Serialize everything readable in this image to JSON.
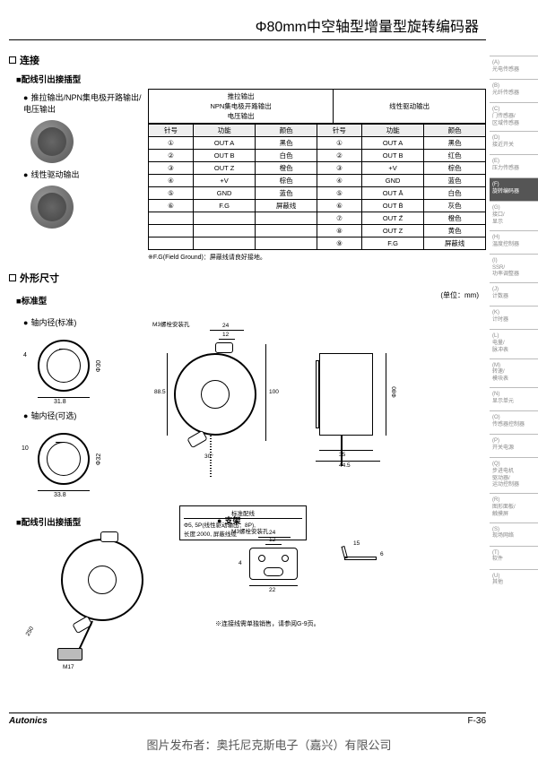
{
  "title": "Φ80mm中空轴型增量型旋转编码器",
  "section1": {
    "heading": "连接",
    "sub1": "■配线引出接插型",
    "bullet1": "推拉输出/NPN集电极开路输出/电压输出",
    "bullet2": "线性驱动输出"
  },
  "pin_table": {
    "header_left": "推拉输出\nNPN集电极开路输出\n电压输出",
    "header_right": "线性驱动输出",
    "cols": [
      "针号",
      "功能",
      "颜色",
      "针号",
      "功能",
      "颜色"
    ],
    "rows": [
      [
        "①",
        "OUT A",
        "黑色",
        "①",
        "OUT A",
        "黑色"
      ],
      [
        "②",
        "OUT B",
        "白色",
        "②",
        "OUT B",
        "红色"
      ],
      [
        "③",
        "OUT Z",
        "橙色",
        "③",
        "+V",
        "棕色"
      ],
      [
        "④",
        "+V",
        "棕色",
        "④",
        "GND",
        "蓝色"
      ],
      [
        "⑤",
        "GND",
        "蓝色",
        "⑤",
        "OUT Ā",
        "白色"
      ],
      [
        "⑥",
        "F.G",
        "屏蔽线",
        "⑥",
        "OUT B̄",
        "灰色"
      ],
      [
        "",
        "",
        "",
        "⑦",
        "OUT Z̄",
        "橙色"
      ],
      [
        "",
        "",
        "",
        "⑧",
        "OUT Z",
        "黄色"
      ],
      [
        "",
        "",
        "",
        "⑨",
        "F.G",
        "屏蔽线"
      ]
    ],
    "note": "※F.G(Field Ground)：屏蔽线请良好接地。"
  },
  "section2": {
    "heading": "外形尺寸",
    "unit": "(单位：mm)",
    "sub_standard": "■标准型",
    "inner_std": "轴内径(标准)",
    "inner_opt": "轴内径(可选)",
    "sub_plug": "■配线引出接插型",
    "bracket": "支架",
    "screw_label": "M3螺栓安装孔",
    "cable_title": "标准配线",
    "cable_text": "Φ5, 5P(线性驱动输出：8P),\n长度:2000, 屏蔽线缆",
    "bracket_note": "※连接线需单独销售，请参阅G-9页。"
  },
  "dims": {
    "d1_w": "31.8",
    "d1_gap": "4",
    "d1_dia": "Φ30",
    "d2_w": "33.8",
    "d2_gap": "10",
    "d2_dia": "Φ32",
    "main_top": "24",
    "main_top2": "12",
    "main_h": "88.5",
    "main_h2": "100",
    "main_dia": "Φ80",
    "angle": "30°",
    "side_w": "35",
    "side_w2": "44.5",
    "plug_cable": "250",
    "plug_m": "M17",
    "br_top": "24",
    "br_top2": "12",
    "br_h": "4",
    "br_side": "22",
    "br_ang": "15",
    "br_h2": "6"
  },
  "sidebar": [
    {
      "code": "(A)",
      "label": "光电传感器"
    },
    {
      "code": "(B)",
      "label": "光纤传感器"
    },
    {
      "code": "(C)",
      "label": "门传感器/\n区域传感器"
    },
    {
      "code": "(D)",
      "label": "接近开关"
    },
    {
      "code": "(E)",
      "label": "压力传感器"
    },
    {
      "code": "(F)",
      "label": "旋转编码器",
      "active": true
    },
    {
      "code": "(G)",
      "label": "接口/\n显示"
    },
    {
      "code": "(H)",
      "label": "温度控制器"
    },
    {
      "code": "(I)",
      "label": "SSR/\n功率调整器"
    },
    {
      "code": "(J)",
      "label": "计数器"
    },
    {
      "code": "(K)",
      "label": "计时器"
    },
    {
      "code": "(L)",
      "label": "电量/\n脉冲表"
    },
    {
      "code": "(M)",
      "label": "转速/\n模块表"
    },
    {
      "code": "(N)",
      "label": "显示单元"
    },
    {
      "code": "(O)",
      "label": "传感器控制器"
    },
    {
      "code": "(P)",
      "label": "开关电源"
    },
    {
      "code": "(Q)",
      "label": "步进电机\n驱动器/\n运动控制器"
    },
    {
      "code": "(R)",
      "label": "图形面板/\n触摸屏"
    },
    {
      "code": "(S)",
      "label": "现场网络"
    },
    {
      "code": "(T)",
      "label": "软件"
    },
    {
      "code": "(U)",
      "label": "其他"
    }
  ],
  "footer": {
    "brand": "Autonics",
    "page": "F-36"
  },
  "credit": "图片发布者：奥托尼克斯电子（嘉兴）有限公司"
}
